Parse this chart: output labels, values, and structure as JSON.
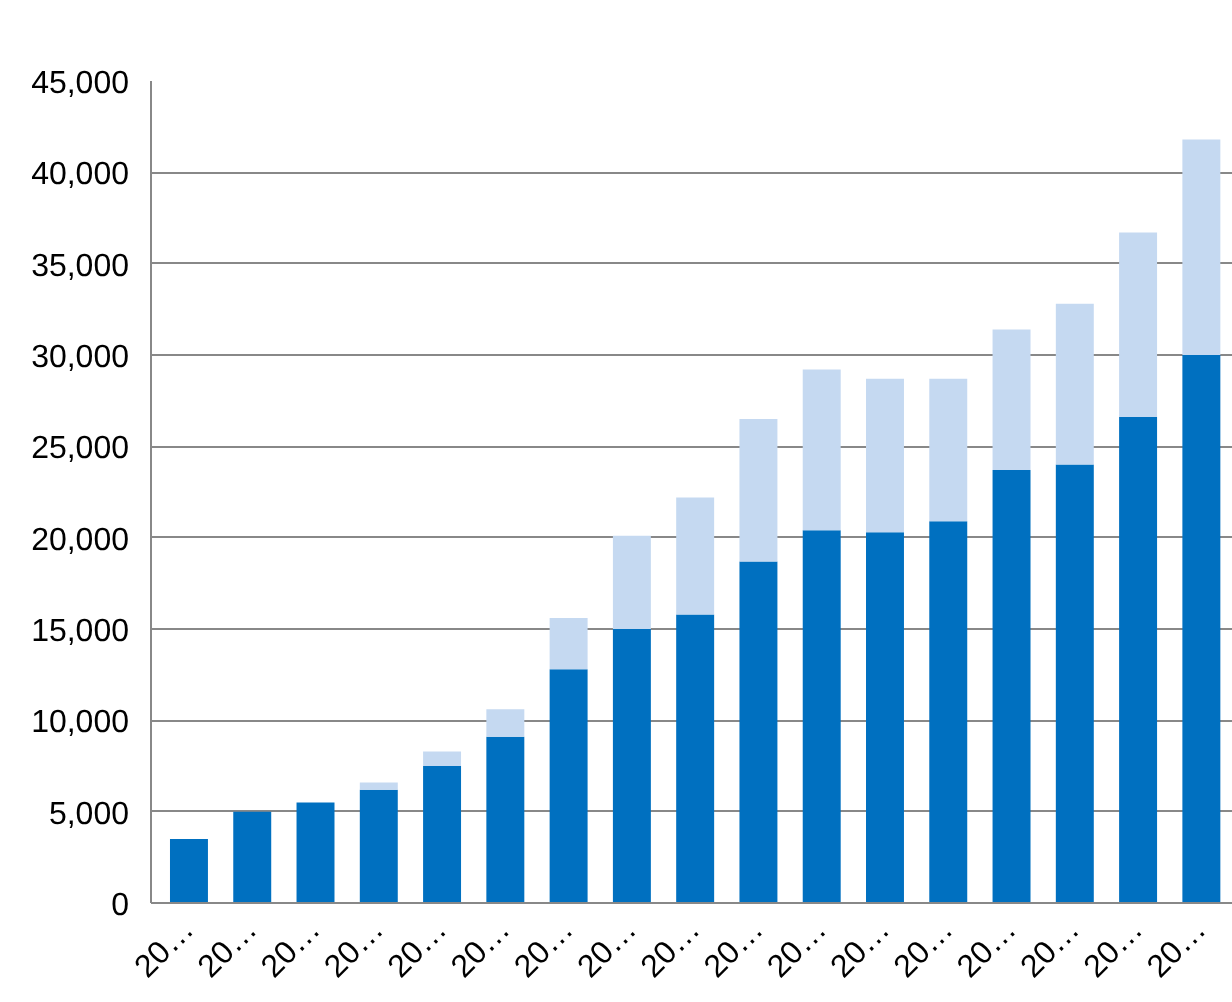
{
  "chart_data": {
    "type": "bar",
    "stacked": true,
    "categories": [
      "20…",
      "20…",
      "20…",
      "20…",
      "20…",
      "20…",
      "20…",
      "20…",
      "20…",
      "20…",
      "20…",
      "20…",
      "20…",
      "20…",
      "20…",
      "20…",
      "20…"
    ],
    "series": [
      {
        "color": "#0070c0",
        "values": [
          3500,
          5000,
          5500,
          6200,
          7500,
          9100,
          12800,
          15000,
          15800,
          18700,
          20400,
          20300,
          20900,
          23700,
          24000,
          26600,
          30000
        ]
      },
      {
        "color": "#c5d9f1",
        "values": [
          0,
          null,
          null,
          400,
          800,
          1500,
          2800,
          5100,
          6400,
          7800,
          8800,
          8400,
          7800,
          7700,
          8800,
          10100,
          11800
        ]
      }
    ],
    "ylim": [
      0,
      45000
    ],
    "yticks": [
      {
        "value": 0,
        "label": "0"
      },
      {
        "value": 5000,
        "label": "5,000"
      },
      {
        "value": 10000,
        "label": "10,000"
      },
      {
        "value": 15000,
        "label": "15,000"
      },
      {
        "value": 20000,
        "label": "20,000"
      },
      {
        "value": 25000,
        "label": "25,000"
      },
      {
        "value": 30000,
        "label": "30,000"
      },
      {
        "value": 35000,
        "label": "35,000"
      },
      {
        "value": 40000,
        "label": "40,000"
      },
      {
        "value": 45000,
        "label": "45,000"
      }
    ],
    "grid": "y"
  }
}
